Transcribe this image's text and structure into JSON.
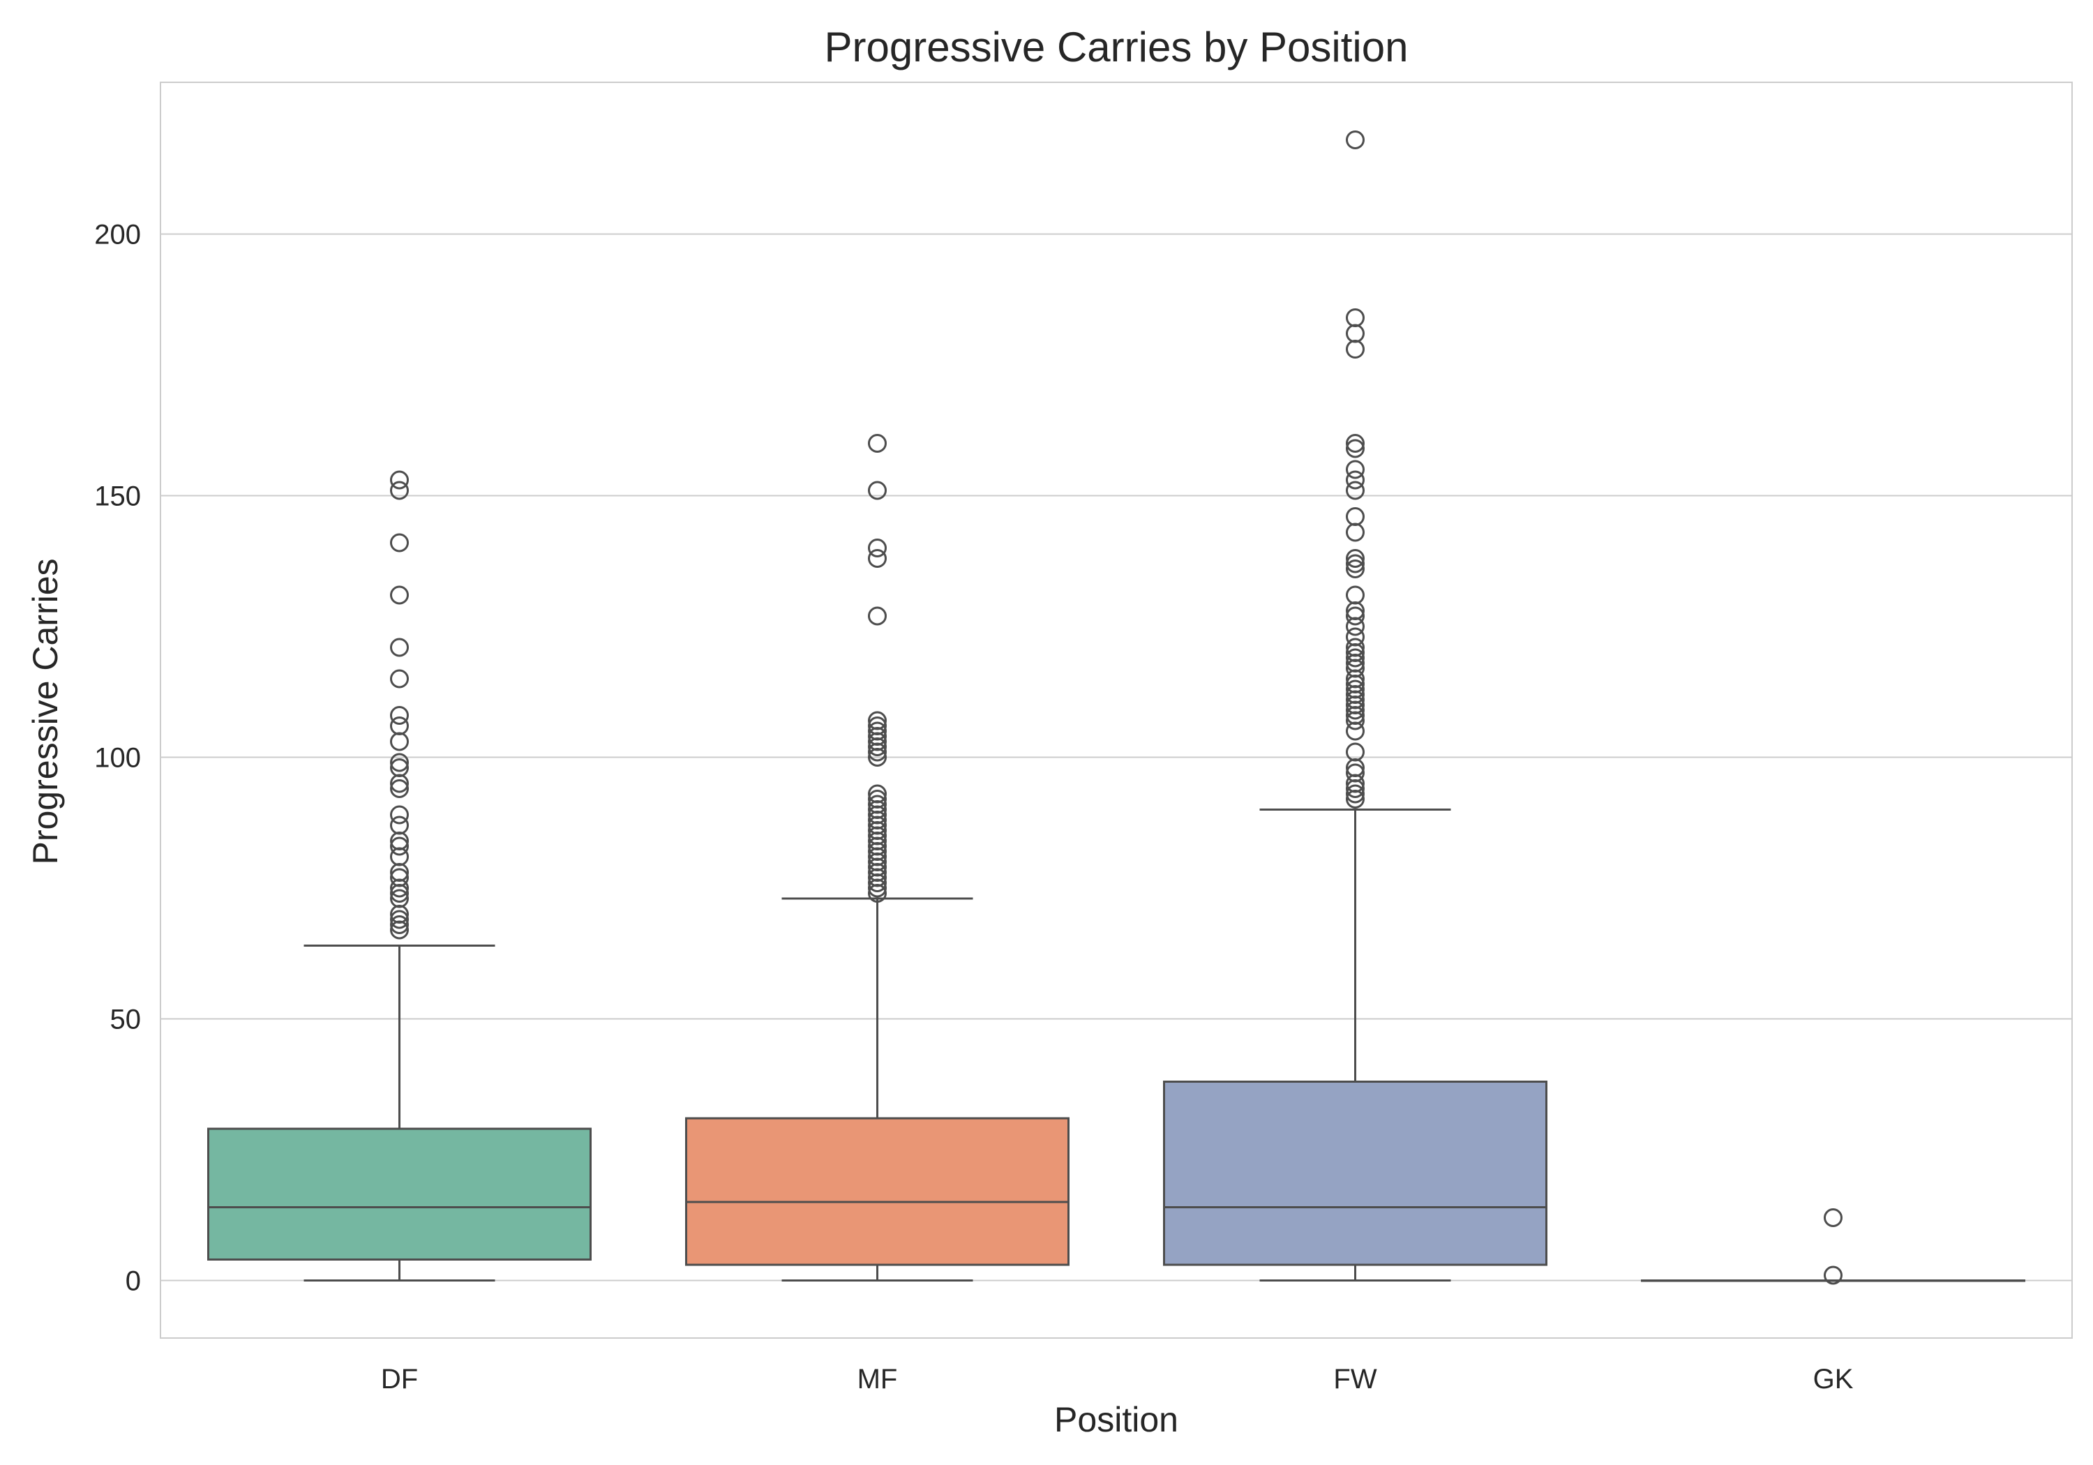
{
  "chart_data": {
    "type": "box",
    "title": "Progressive Carries by Position",
    "xlabel": "Position",
    "ylabel": "Progressive Carries",
    "ylim": [
      -11,
      229
    ],
    "yticks": [
      0,
      50,
      100,
      150,
      200
    ],
    "grid": "horizontal",
    "categories": [
      "DF",
      "MF",
      "FW",
      "GK"
    ],
    "colors": [
      "#75b7a1",
      "#e99675",
      "#95a3c3",
      "#ffffff"
    ],
    "line_color": "#4d4d4d",
    "boxes": [
      {
        "name": "DF",
        "whisker_low": 0,
        "q1": 4,
        "median": 14,
        "q3": 29,
        "whisker_high": 64,
        "outliers": [
          67,
          68,
          69,
          70,
          73,
          74,
          75,
          77,
          78,
          81,
          83,
          84,
          87,
          89,
          94,
          95,
          98,
          99,
          103,
          106,
          108,
          115,
          121,
          131,
          141,
          151,
          153
        ]
      },
      {
        "name": "MF",
        "whisker_low": 0,
        "q1": 3,
        "median": 15,
        "q3": 31,
        "whisker_high": 73,
        "outliers": [
          74,
          75,
          76,
          77,
          78,
          79,
          80,
          81,
          82,
          83,
          84,
          85,
          86,
          87,
          88,
          89,
          90,
          91,
          92,
          93,
          100,
          101,
          102,
          103,
          104,
          105,
          106,
          107,
          127,
          138,
          140,
          151,
          160
        ]
      },
      {
        "name": "FW",
        "whisker_low": 0,
        "q1": 3,
        "median": 14,
        "q3": 38,
        "whisker_high": 90,
        "outliers": [
          92,
          93,
          94,
          95,
          97,
          98,
          101,
          105,
          107,
          108,
          109,
          110,
          111,
          112,
          113,
          114,
          115,
          117,
          118,
          119,
          120,
          121,
          123,
          125,
          127,
          128,
          131,
          136,
          137,
          138,
          143,
          146,
          151,
          153,
          155,
          159,
          160,
          178,
          181,
          184,
          218
        ]
      },
      {
        "name": "GK",
        "whisker_low": 0,
        "q1": 0,
        "median": 0,
        "q3": 0,
        "whisker_high": 0,
        "outliers": [
          1,
          12
        ]
      }
    ]
  }
}
